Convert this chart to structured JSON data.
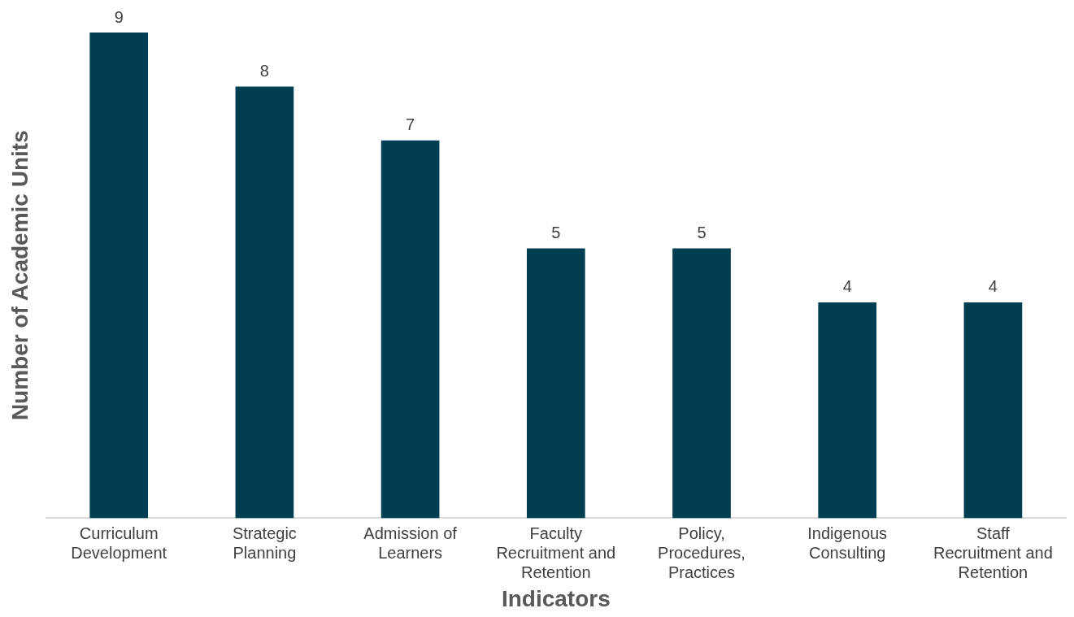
{
  "chart_data": {
    "type": "bar",
    "xlabel": "Indicators",
    "ylabel": "Number of Academic Units",
    "categories": [
      "Curriculum Development",
      "Strategic Planning",
      "Admission of Learners",
      "Faculty Recruitment and Retention",
      "Policy, Procedures, Practices",
      "Indigenous Consulting",
      "Staff Recruitment and Retention"
    ],
    "values": [
      9,
      8,
      7,
      5,
      5,
      4,
      4
    ],
    "color": "#003f52",
    "data_labels": true,
    "grid": false,
    "legend": false
  }
}
